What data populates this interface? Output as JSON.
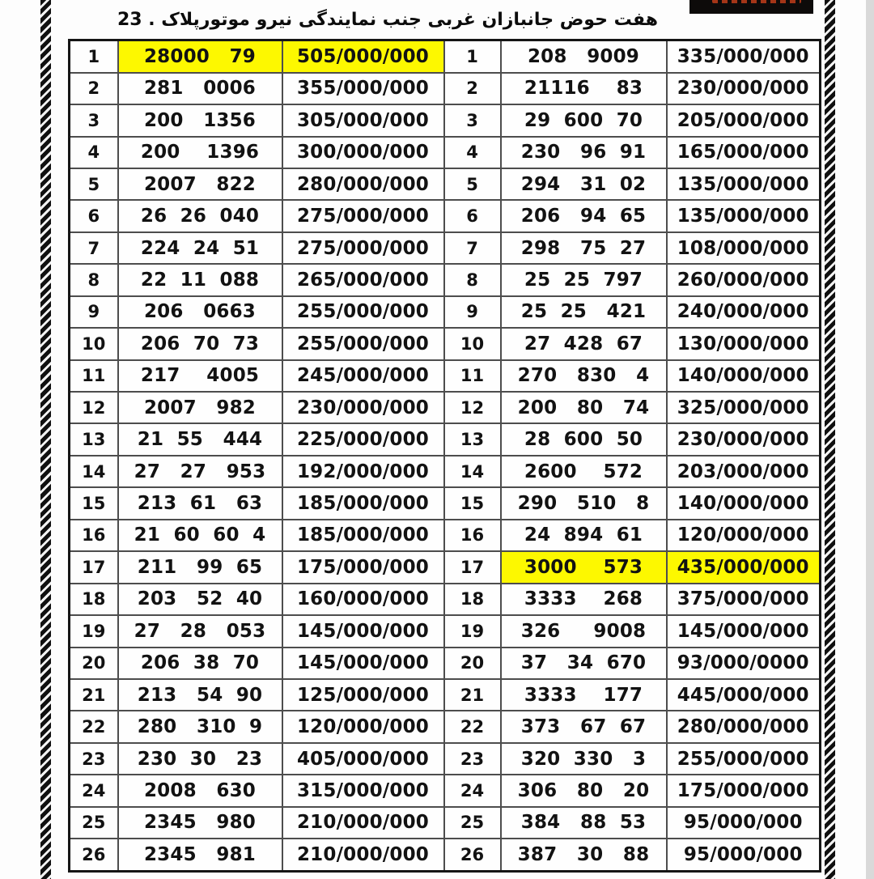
{
  "title": "هفت حوض جانبازان غربی جنب نمایندگی نیرو موتورپلاک . 23",
  "colors": {
    "highlight": "#fdf800",
    "grid_line": "#4d4d4d",
    "outer_border": "#151515",
    "watermark_bg": "#0d0b0a",
    "side_gray_strip": "#d9d9d9"
  },
  "table": {
    "rows": [
      {
        "n_l": "1",
        "phone_l": "28000   79",
        "price_l": "505/000/000",
        "hl_l": true,
        "n_r": "1",
        "phone_r": "208   9009",
        "price_r": "335/000/000",
        "hl_r": false
      },
      {
        "n_l": "2",
        "phone_l": "281   0006",
        "price_l": "355/000/000",
        "hl_l": false,
        "n_r": "2",
        "phone_r": "21116    83",
        "price_r": "230/000/000",
        "hl_r": false
      },
      {
        "n_l": "3",
        "phone_l": "200   1356",
        "price_l": "305/000/000",
        "hl_l": false,
        "n_r": "3",
        "phone_r": "29  600  70",
        "price_r": "205/000/000",
        "hl_r": false
      },
      {
        "n_l": "4",
        "phone_l": "200    1396",
        "price_l": "300/000/000",
        "hl_l": false,
        "n_r": "4",
        "phone_r": "230   96  91",
        "price_r": "165/000/000",
        "hl_r": false
      },
      {
        "n_l": "5",
        "phone_l": "2007   822",
        "price_l": "280/000/000",
        "hl_l": false,
        "n_r": "5",
        "phone_r": "294   31  02",
        "price_r": "135/000/000",
        "hl_r": false
      },
      {
        "n_l": "6",
        "phone_l": "26  26  040",
        "price_l": "275/000/000",
        "hl_l": false,
        "n_r": "6",
        "phone_r": "206   94  65",
        "price_r": "135/000/000",
        "hl_r": false
      },
      {
        "n_l": "7",
        "phone_l": "224  24  51",
        "price_l": "275/000/000",
        "hl_l": false,
        "n_r": "7",
        "phone_r": "298   75  27",
        "price_r": "108/000/000",
        "hl_r": false
      },
      {
        "n_l": "8",
        "phone_l": "22  11  088",
        "price_l": "265/000/000",
        "hl_l": false,
        "n_r": "8",
        "phone_r": "25  25  797",
        "price_r": "260/000/000",
        "hl_r": false
      },
      {
        "n_l": "9",
        "phone_l": "206   0663",
        "price_l": "255/000/000",
        "hl_l": false,
        "n_r": "9",
        "phone_r": "25  25   421",
        "price_r": "240/000/000",
        "hl_r": false
      },
      {
        "n_l": "10",
        "phone_l": "206  70  73",
        "price_l": "255/000/000",
        "hl_l": false,
        "n_r": "10",
        "phone_r": "27  428  67",
        "price_r": "130/000/000",
        "hl_r": false
      },
      {
        "n_l": "11",
        "phone_l": "217    4005",
        "price_l": "245/000/000",
        "hl_l": false,
        "n_r": "11",
        "phone_r": "270   830   4",
        "price_r": "140/000/000",
        "hl_r": false
      },
      {
        "n_l": "12",
        "phone_l": "2007   982",
        "price_l": "230/000/000",
        "hl_l": false,
        "n_r": "12",
        "phone_r": "200   80   74",
        "price_r": "325/000/000",
        "hl_r": false
      },
      {
        "n_l": "13",
        "phone_l": "21  55   444",
        "price_l": "225/000/000",
        "hl_l": false,
        "n_r": "13",
        "phone_r": "28  600  50",
        "price_r": "230/000/000",
        "hl_r": false
      },
      {
        "n_l": "14",
        "phone_l": "27   27   953",
        "price_l": "192/000/000",
        "hl_l": false,
        "n_r": "14",
        "phone_r": "2600    572",
        "price_r": "203/000/000",
        "hl_r": false
      },
      {
        "n_l": "15",
        "phone_l": "213  61   63",
        "price_l": "185/000/000",
        "hl_l": false,
        "n_r": "15",
        "phone_r": "290   510   8",
        "price_r": "140/000/000",
        "hl_r": false
      },
      {
        "n_l": "16",
        "phone_l": "21  60  60  4",
        "price_l": "185/000/000",
        "hl_l": false,
        "n_r": "16",
        "phone_r": "24  894  61",
        "price_r": "120/000/000",
        "hl_r": false
      },
      {
        "n_l": "17",
        "phone_l": "211   99  65",
        "price_l": "175/000/000",
        "hl_l": false,
        "n_r": "17",
        "phone_r": "3000    573",
        "price_r": "435/000/000",
        "hl_r": true
      },
      {
        "n_l": "18",
        "phone_l": "203   52  40",
        "price_l": "160/000/000",
        "hl_l": false,
        "n_r": "18",
        "phone_r": "3333    268",
        "price_r": "375/000/000",
        "hl_r": false
      },
      {
        "n_l": "19",
        "phone_l": "27   28   053",
        "price_l": "145/000/000",
        "hl_l": false,
        "n_r": "19",
        "phone_r": "326     9008",
        "price_r": "145/000/000",
        "hl_r": false
      },
      {
        "n_l": "20",
        "phone_l": "206  38  70",
        "price_l": "145/000/000",
        "hl_l": false,
        "n_r": "20",
        "phone_r": "37   34  670",
        "price_r": "93/000/0000",
        "hl_r": false
      },
      {
        "n_l": "21",
        "phone_l": "213   54  90",
        "price_l": "125/000/000",
        "hl_l": false,
        "n_r": "21",
        "phone_r": "3333    177",
        "price_r": "445/000/000",
        "hl_r": false
      },
      {
        "n_l": "22",
        "phone_l": "280   310  9",
        "price_l": "120/000/000",
        "hl_l": false,
        "n_r": "22",
        "phone_r": "373   67  67",
        "price_r": "280/000/000",
        "hl_r": false
      },
      {
        "n_l": "23",
        "phone_l": "230  30   23",
        "price_l": "405/000/000",
        "hl_l": false,
        "n_r": "23",
        "phone_r": "320  330   3",
        "price_r": "255/000/000",
        "hl_r": false
      },
      {
        "n_l": "24",
        "phone_l": "2008   630",
        "price_l": "315/000/000",
        "hl_l": false,
        "n_r": "24",
        "phone_r": "306   80   20",
        "price_r": "175/000/000",
        "hl_r": false
      },
      {
        "n_l": "25",
        "phone_l": "2345   980",
        "price_l": "210/000/000",
        "hl_l": false,
        "n_r": "25",
        "phone_r": "384   88  53",
        "price_r": "95/000/000",
        "hl_r": false
      },
      {
        "n_l": "26",
        "phone_l": "2345   981",
        "price_l": "210/000/000",
        "hl_l": false,
        "n_r": "26",
        "phone_r": "387   30   88",
        "price_r": "95/000/000",
        "hl_r": false
      }
    ]
  }
}
